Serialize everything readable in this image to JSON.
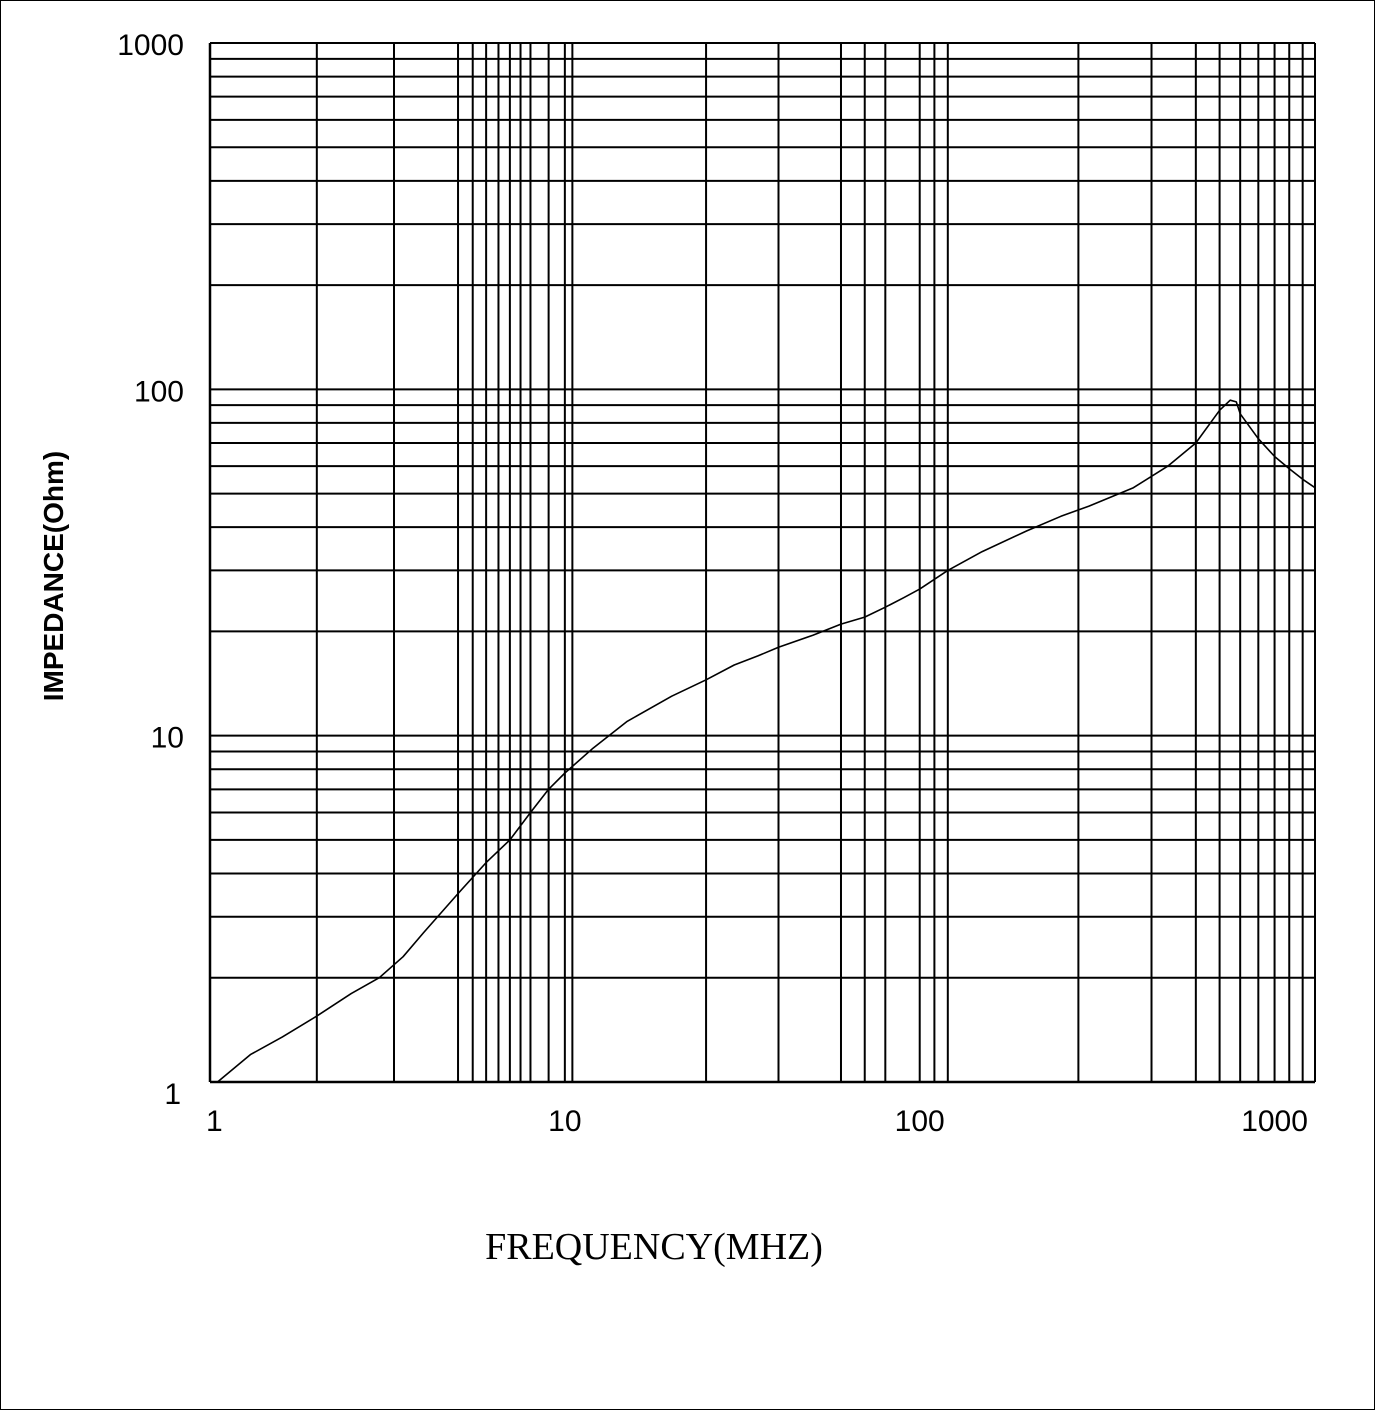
{
  "chart_data": {
    "type": "line",
    "xlabel": "FREQUENCY(MHZ)",
    "ylabel": "IMPEDANCE(Ohm)",
    "x_scale": "log",
    "y_scale": "log",
    "xlim": [
      1,
      1300
    ],
    "ylim": [
      1,
      1000
    ],
    "grid": true,
    "x_ticks": [
      {
        "value": 1,
        "label": "1"
      },
      {
        "value": 10,
        "label": "10"
      },
      {
        "value": 100,
        "label": "100"
      },
      {
        "value": 1000,
        "label": "1000"
      }
    ],
    "y_ticks": [
      {
        "value": 1,
        "label": "1"
      },
      {
        "value": 10,
        "label": "10"
      },
      {
        "value": 100,
        "label": "100"
      },
      {
        "value": 1000,
        "label": "1000"
      }
    ],
    "x_gridlines": [
      1,
      2,
      3.3,
      5,
      5.5,
      6,
      6.5,
      7,
      7.5,
      8,
      9,
      10,
      10.5,
      25,
      40,
      60,
      70,
      80,
      100,
      110,
      120,
      280,
      450,
      600,
      700,
      800,
      900,
      1000,
      1100,
      1200,
      1300
    ],
    "y_gridlines": [
      1,
      2,
      3,
      4,
      5,
      6,
      7,
      8,
      9,
      10,
      20,
      30,
      40,
      50,
      60,
      70,
      80,
      90,
      100,
      200,
      300,
      400,
      500,
      600,
      700,
      800,
      900,
      1000
    ],
    "series": [
      {
        "color": "#000000",
        "x": [
          1.05,
          1.3,
          1.6,
          2.0,
          2.5,
          3.0,
          3.5,
          4.0,
          5.0,
          6.0,
          7.0,
          8.0,
          9.0,
          10,
          12,
          15,
          20,
          25,
          30,
          35,
          40,
          50,
          60,
          70,
          80,
          90,
          100,
          120,
          150,
          200,
          250,
          300,
          400,
          500,
          600,
          700,
          750,
          780,
          800,
          900,
          1000,
          1100,
          1200,
          1300
        ],
        "values": [
          1.0,
          1.2,
          1.35,
          1.55,
          1.8,
          2.0,
          2.3,
          2.7,
          3.5,
          4.3,
          5.0,
          6.0,
          7.0,
          7.8,
          9.2,
          11.0,
          13.0,
          14.5,
          16.0,
          17.0,
          18.0,
          19.5,
          21.0,
          22.0,
          23.5,
          25.0,
          26.5,
          30.0,
          34.0,
          39.0,
          43.0,
          46.0,
          52.0,
          60.0,
          70.0,
          87.0,
          93.0,
          92.0,
          85.0,
          72.0,
          64.0,
          59.0,
          55.0,
          52.0
        ]
      }
    ]
  }
}
